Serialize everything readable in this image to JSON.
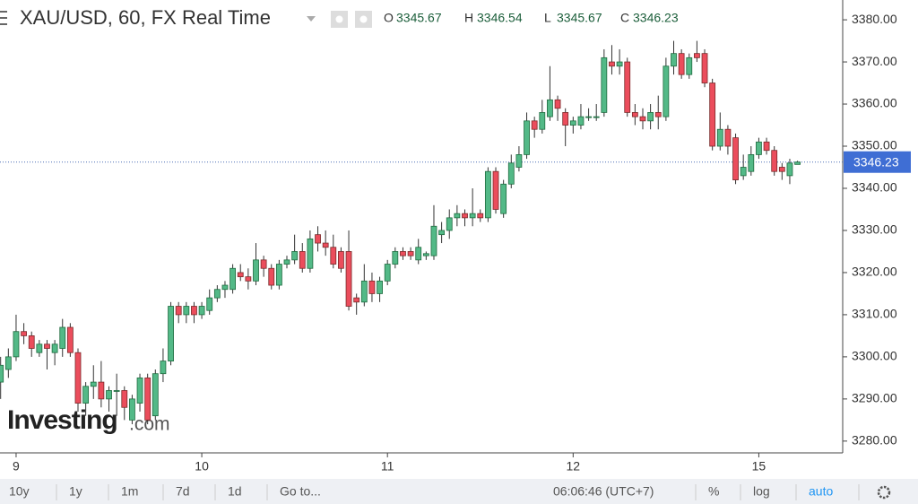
{
  "chart_data": {
    "type": "candlestick",
    "title": "XAU/USD, 60, FX Real Time",
    "ohlc_legend": [
      {
        "label": "O",
        "value": 3345.67
      },
      {
        "label": "H",
        "value": 3346.54
      },
      {
        "label": "L",
        "value": 3345.67
      },
      {
        "label": "C",
        "value": 3346.23
      }
    ],
    "last_price": 3346.23,
    "watermark": [
      "Investing",
      ".com"
    ],
    "up_color": "#53b987",
    "down_color": "#eb4d5c",
    "grid": false,
    "ylim": [
      3277.2,
      3384.7
    ],
    "yticks": [
      {
        "value": 3280,
        "label": "3280.00"
      },
      {
        "value": 3290,
        "label": "3290.00"
      },
      {
        "value": 3300,
        "label": "3300.00"
      },
      {
        "value": 3310,
        "label": "3310.00"
      },
      {
        "value": 3320,
        "label": "3320.00"
      },
      {
        "value": 3330,
        "label": "3330.00"
      },
      {
        "value": 3340,
        "label": "3340.00"
      },
      {
        "value": 3350,
        "label": "3350.00"
      },
      {
        "value": 3360,
        "label": "3360.00"
      },
      {
        "value": 3370,
        "label": "3370.00"
      },
      {
        "value": 3380,
        "label": "3380.00"
      }
    ],
    "categories": [
      null,
      null,
      "9",
      null,
      null,
      null,
      null,
      null,
      null,
      null,
      null,
      null,
      null,
      null,
      null,
      null,
      null,
      null,
      null,
      null,
      null,
      null,
      null,
      null,
      null,
      null,
      "10",
      null,
      null,
      null,
      null,
      null,
      null,
      null,
      null,
      null,
      null,
      null,
      null,
      null,
      null,
      null,
      null,
      null,
      null,
      null,
      null,
      null,
      null,
      null,
      "11",
      null,
      null,
      null,
      null,
      null,
      null,
      null,
      null,
      null,
      null,
      null,
      null,
      null,
      null,
      null,
      null,
      null,
      null,
      null,
      null,
      null,
      null,
      null,
      "12",
      null,
      null,
      null,
      null,
      null,
      null,
      null,
      null,
      null,
      null,
      null,
      null,
      null,
      null,
      null,
      null,
      null,
      null,
      null,
      null,
      null,
      null,
      null,
      "15",
      null,
      null,
      null,
      null,
      null
    ],
    "open": [
      3294,
      3297,
      3300,
      3306,
      3305,
      3301,
      3303,
      3301,
      3302,
      3307,
      3301,
      3289,
      3293,
      3294,
      3290,
      3292,
      3292,
      3285,
      3289,
      3295,
      3286,
      3296,
      3299,
      3312,
      3310,
      3312,
      3310,
      3311,
      3314,
      3316,
      3316,
      3320,
      3319,
      3318,
      3323,
      3321,
      3317,
      3322,
      3323,
      3325,
      3321,
      3329,
      3327,
      3326,
      3325,
      3325,
      3314,
      3313,
      3318,
      3315,
      3318,
      3322,
      3325,
      3325,
      3323,
      3324,
      3324,
      3329,
      3330,
      3333,
      3334,
      3333,
      3334,
      3333,
      3344,
      3334,
      3341,
      3345,
      3348,
      3356,
      3354,
      3357,
      3361,
      3358,
      3355,
      3355,
      3357,
      3357,
      3358,
      3370,
      3369,
      3370,
      3358,
      3357,
      3356,
      3358,
      3357,
      3369,
      3372,
      3367,
      3372,
      3372,
      3365,
      3350,
      3354,
      3352,
      3343,
      3344,
      3348,
      3351,
      3349,
      3345,
      3343,
      3345.67
    ],
    "high": [
      3300,
      3302,
      3310,
      3308,
      3306,
      3304,
      3304,
      3304,
      3309,
      3308,
      3302,
      3294,
      3298,
      3299,
      3293,
      3296,
      3293,
      3291,
      3296,
      3296,
      3297,
      3302,
      3313,
      3313,
      3313,
      3313,
      3313,
      3316,
      3317,
      3318,
      3322,
      3322,
      3321,
      3327,
      3324,
      3322,
      3323,
      3324,
      3329,
      3327,
      3330,
      3331,
      3330,
      3329,
      3326,
      3330,
      3315,
      3322,
      3320,
      3319,
      3323,
      3326,
      3326,
      3326,
      3328,
      3325,
      3336,
      3332,
      3335,
      3336,
      3335,
      3340,
      3335,
      3345,
      3345,
      3342,
      3348,
      3350,
      3358,
      3357,
      3361,
      3369,
      3362,
      3359,
      3357,
      3360,
      3359,
      3360,
      3373,
      3374,
      3373,
      3371,
      3360,
      3359,
      3360,
      3362,
      3371,
      3375,
      3373,
      3372,
      3375,
      3373,
      3366,
      3358,
      3355,
      3353,
      3348,
      3350,
      3352,
      3352,
      3350,
      3346,
      3347,
      3346.54
    ],
    "low": [
      3290,
      3295,
      3299,
      3303,
      3300,
      3300,
      3297,
      3298,
      3300,
      3300,
      3287,
      3286,
      3290,
      3288,
      3287,
      3286,
      3285,
      3284,
      3287,
      3284,
      3285,
      3294,
      3298,
      3308,
      3308,
      3308,
      3309,
      3310,
      3313,
      3314,
      3315,
      3318,
      3316,
      3317,
      3319,
      3316,
      3316,
      3321,
      3322,
      3320,
      3320,
      3325,
      3324,
      3321,
      3320,
      3311,
      3310,
      3312,
      3313,
      3313,
      3317,
      3321,
      3323,
      3323,
      3322,
      3323,
      3323,
      3327,
      3328,
      3331,
      3331,
      3331,
      3332,
      3332,
      3334,
      3333,
      3340,
      3344,
      3347,
      3352,
      3353,
      3356,
      3356,
      3350,
      3353,
      3354,
      3356,
      3356,
      3357,
      3367,
      3367,
      3357,
      3355,
      3354,
      3354,
      3354,
      3356,
      3367,
      3366,
      3366,
      3370,
      3364,
      3349,
      3349,
      3348,
      3341,
      3342,
      3343,
      3347,
      3348,
      3343,
      3342,
      3341,
      3345.67
    ],
    "close": [
      3298,
      3300,
      3306,
      3305,
      3302,
      3303,
      3302,
      3303,
      3307,
      3301,
      3289,
      3293,
      3294,
      3290,
      3292,
      3292,
      3288,
      3290,
      3295,
      3285,
      3296,
      3299,
      3312,
      3310,
      3312,
      3310,
      3312,
      3314,
      3316,
      3317,
      3321,
      3319,
      3318,
      3323,
      3321,
      3317,
      3322,
      3323,
      3325,
      3321,
      3328,
      3327,
      3326,
      3322,
      3321,
      3312,
      3313,
      3318,
      3315,
      3318,
      3322,
      3325,
      3324,
      3324,
      3326,
      3324.5,
      3331,
      3330,
      3333,
      3334,
      3333,
      3334,
      3333,
      3344,
      3335,
      3341,
      3346,
      3348,
      3356,
      3354,
      3358,
      3361,
      3359,
      3355,
      3356,
      3357,
      3357,
      3357,
      3371,
      3369,
      3370,
      3358,
      3357,
      3356,
      3358,
      3357,
      3369,
      3372,
      3367,
      3371,
      3371,
      3365,
      3350,
      3354,
      3350,
      3342,
      3345,
      3348,
      3351,
      3349,
      3344,
      3344,
      3346,
      3346.23
    ]
  },
  "toolbar": {
    "ranges": [
      "10y",
      "1y",
      "1m",
      "7d",
      "1d",
      "Go to..."
    ],
    "time": "06:06:46 (UTC+7)",
    "options": [
      "%",
      "log",
      "auto"
    ]
  }
}
